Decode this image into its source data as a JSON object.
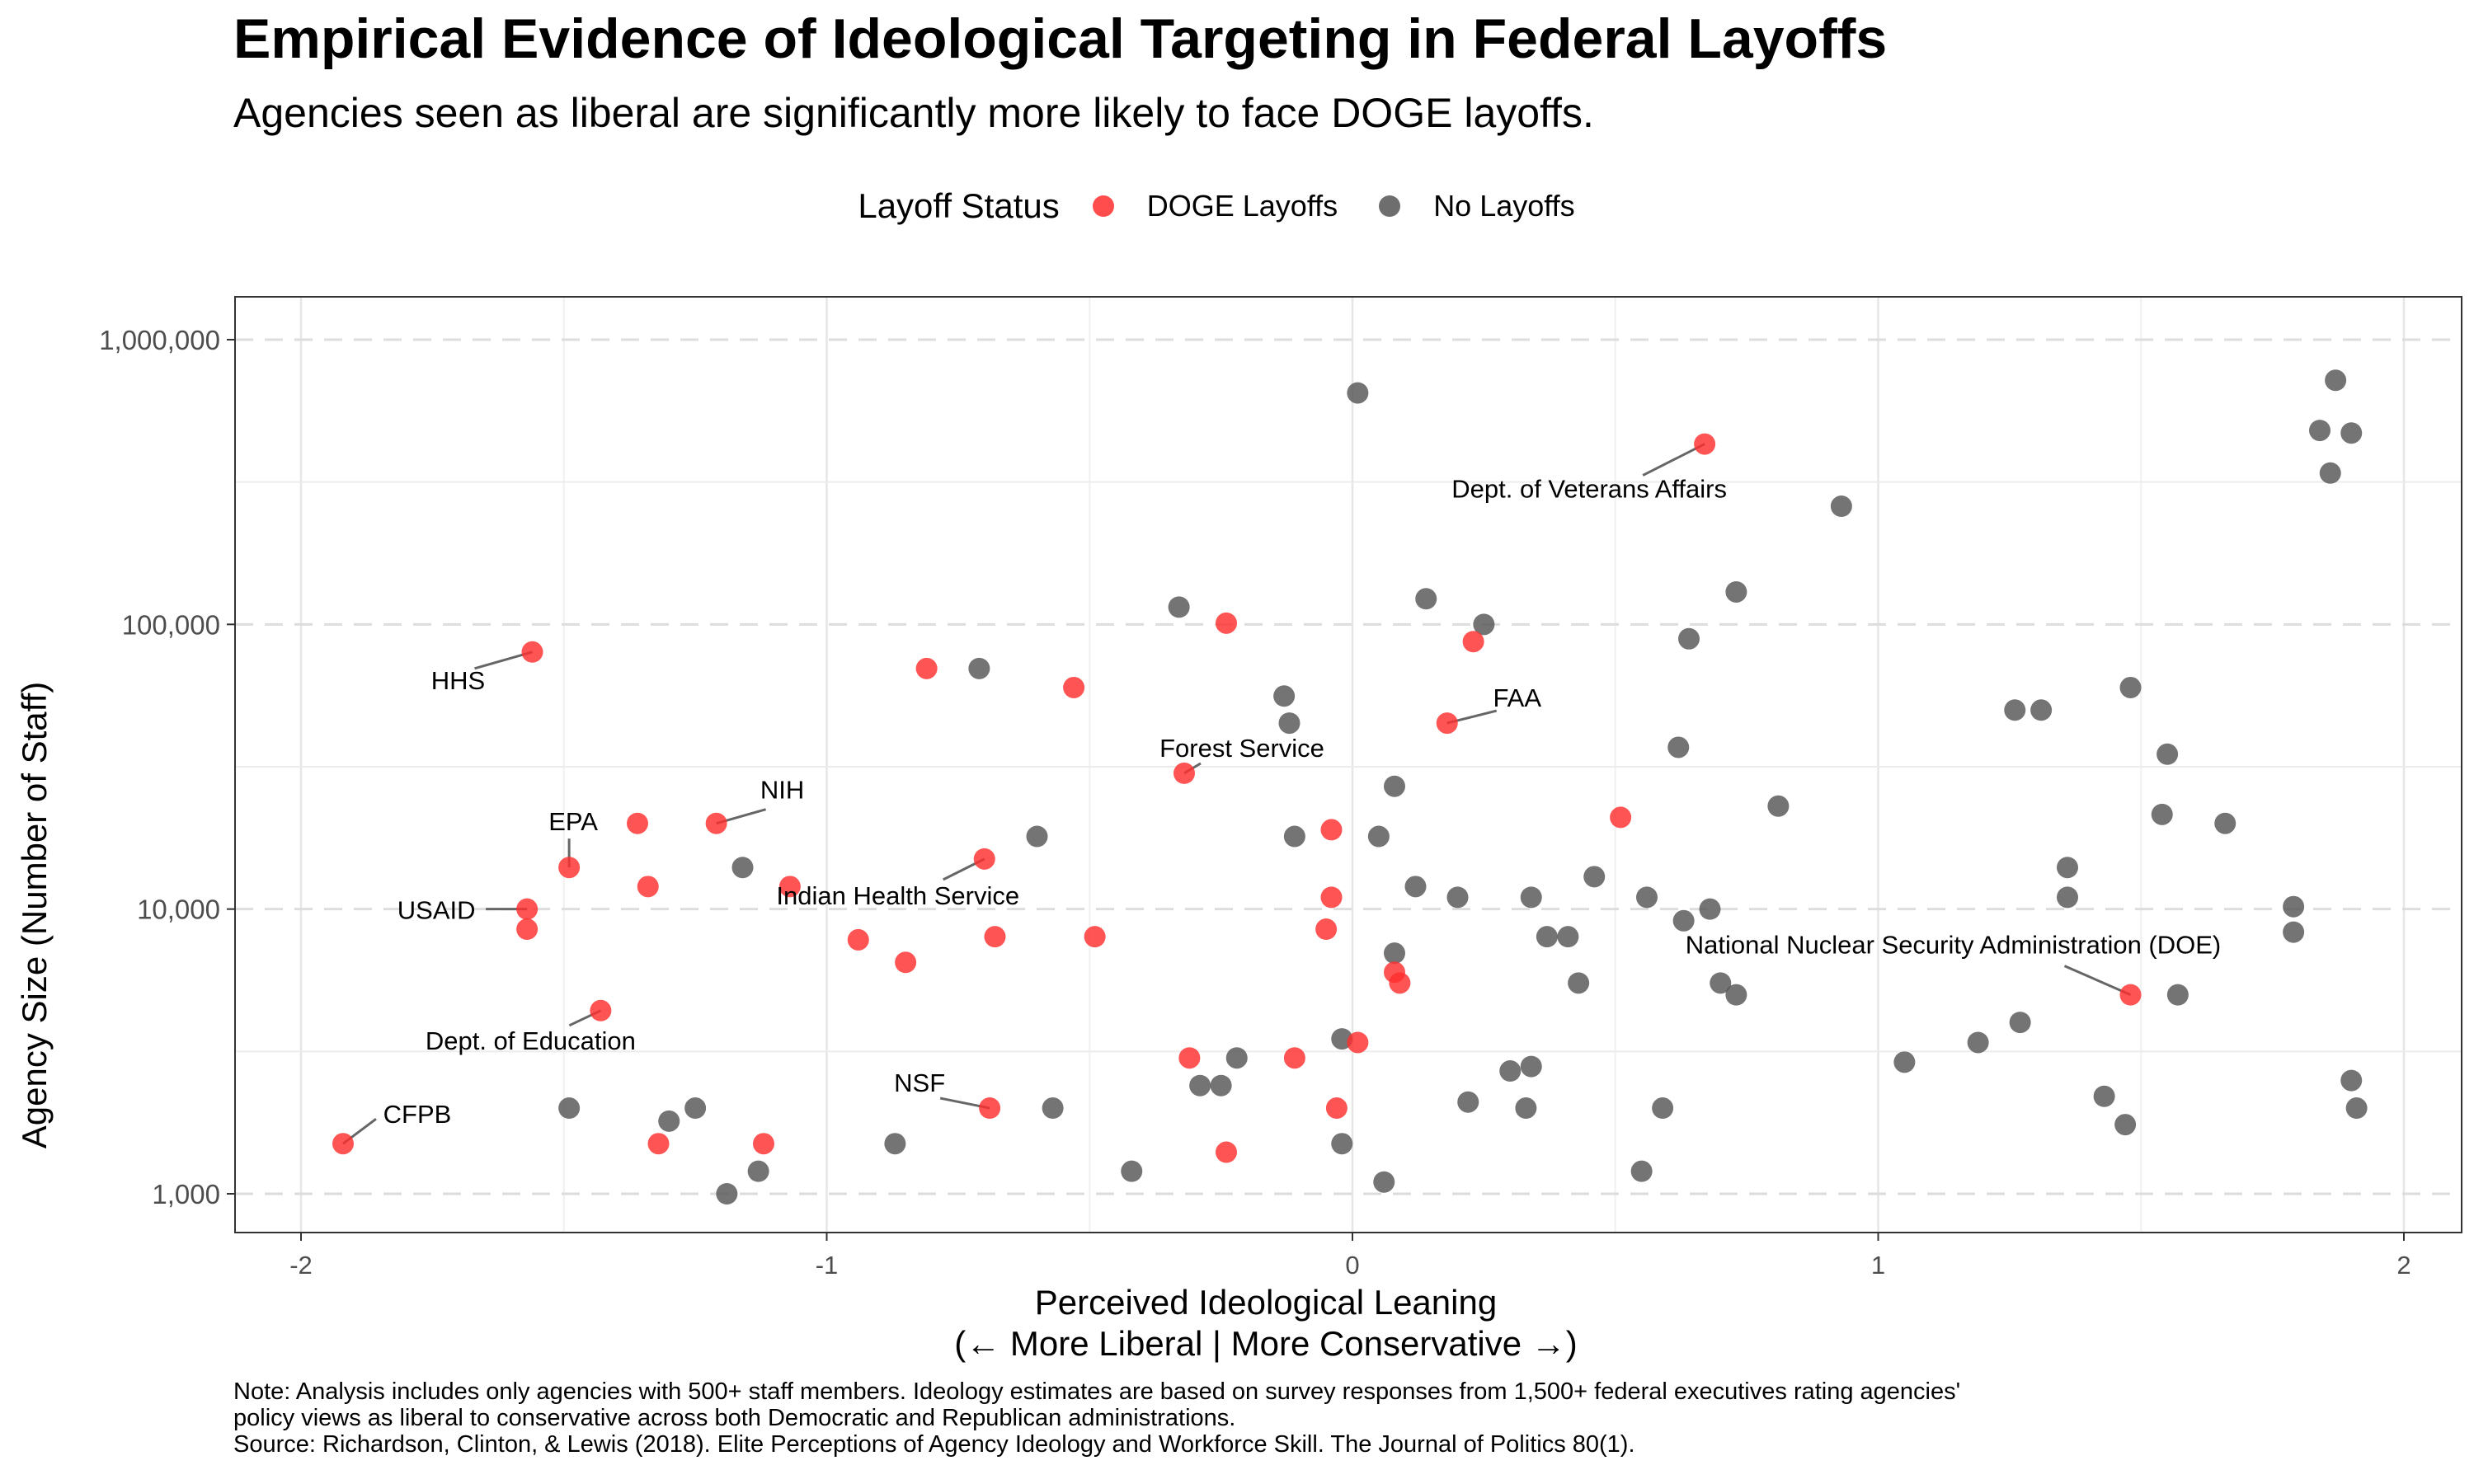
{
  "title": "Empirical Evidence of Ideological Targeting in Federal Layoffs",
  "subtitle": "Agencies seen as liberal are significantly more likely to face DOGE layoffs.",
  "legend": {
    "title": "Layoff Status",
    "items": [
      {
        "label": "DOGE Layoffs",
        "color": "#ff2e2e"
      },
      {
        "label": "No Layoffs",
        "color": "#555555"
      }
    ]
  },
  "x_axis_title_line1": "Perceived Ideological Leaning",
  "x_axis_title_line2": "(← More Liberal | More Conservative →)",
  "y_axis_title": "Agency Size (Number of Staff)",
  "notes": {
    "line1": "Note: Analysis includes only agencies with 500+ staff members. Ideology estimates are based on survey responses from 1,500+ federal executives rating agencies'",
    "line2": "policy views as liberal to conservative across both Democratic and Republican administrations.",
    "source": "Source: Richardson, Clinton, & Lewis (2018). Elite Perceptions of Agency Ideology and Workforce Skill. The Journal of Politics 80(1)."
  },
  "chart_data": {
    "type": "scatter",
    "x_scale": "linear",
    "y_scale": "log10",
    "xlim": [
      -2.1,
      2.1
    ],
    "ylim": [
      800,
      1400000
    ],
    "x_ticks": [
      -2,
      -1,
      0,
      1,
      2
    ],
    "x_tick_labels": [
      "-2",
      "-1",
      "0",
      "1",
      "2"
    ],
    "y_ticks": [
      1000,
      10000,
      100000,
      1000000
    ],
    "y_tick_labels": [
      "1,000",
      "10,000",
      "100,000",
      "1,000,000"
    ],
    "grid": true,
    "legend_position": "top",
    "colors": {
      "layoff": "#ff2e2e",
      "none": "#555555"
    },
    "series": [
      {
        "name": "DOGE Layoffs",
        "points": [
          {
            "x": 0.67,
            "y": 430000,
            "label": "Dept. of Veterans Affairs"
          },
          {
            "x": -0.24,
            "y": 101000
          },
          {
            "x": 0.23,
            "y": 87000
          },
          {
            "x": -1.56,
            "y": 80000,
            "label": "HHS"
          },
          {
            "x": -0.81,
            "y": 70000
          },
          {
            "x": -0.53,
            "y": 60000
          },
          {
            "x": 0.18,
            "y": 45000,
            "label": "FAA"
          },
          {
            "x": -0.32,
            "y": 30000,
            "label": "Forest Service"
          },
          {
            "x": 0.51,
            "y": 21000
          },
          {
            "x": -1.36,
            "y": 20000
          },
          {
            "x": -1.21,
            "y": 20000,
            "label": "NIH"
          },
          {
            "x": -0.04,
            "y": 19000
          },
          {
            "x": -0.7,
            "y": 15000,
            "label": "Indian Health Service"
          },
          {
            "x": -1.49,
            "y": 14000,
            "label": "EPA"
          },
          {
            "x": -1.34,
            "y": 12000
          },
          {
            "x": -1.07,
            "y": 12000
          },
          {
            "x": -0.04,
            "y": 11000
          },
          {
            "x": -1.57,
            "y": 10000,
            "label": "USAID"
          },
          {
            "x": -1.57,
            "y": 8500
          },
          {
            "x": -0.05,
            "y": 8500
          },
          {
            "x": -0.94,
            "y": 7800
          },
          {
            "x": -0.68,
            "y": 8000
          },
          {
            "x": -0.49,
            "y": 8000
          },
          {
            "x": -0.85,
            "y": 6500
          },
          {
            "x": 0.08,
            "y": 6000
          },
          {
            "x": 0.09,
            "y": 5500
          },
          {
            "x": 1.48,
            "y": 5000,
            "label": "National Nuclear Security Administration (DOE)"
          },
          {
            "x": -1.43,
            "y": 4400,
            "label": "Dept. of Education"
          },
          {
            "x": 0.01,
            "y": 3400
          },
          {
            "x": -0.31,
            "y": 3000
          },
          {
            "x": -0.11,
            "y": 3000
          },
          {
            "x": -0.69,
            "y": 2000,
            "label": "NSF"
          },
          {
            "x": -0.03,
            "y": 2000
          },
          {
            "x": -1.92,
            "y": 1500,
            "label": "CFPB"
          },
          {
            "x": -1.32,
            "y": 1500
          },
          {
            "x": -1.12,
            "y": 1500
          },
          {
            "x": -0.24,
            "y": 1400
          }
        ]
      },
      {
        "name": "No Layoffs",
        "points": [
          {
            "x": 0.01,
            "y": 650000
          },
          {
            "x": 1.87,
            "y": 720000
          },
          {
            "x": 1.84,
            "y": 480000
          },
          {
            "x": 1.9,
            "y": 470000
          },
          {
            "x": 1.86,
            "y": 340000
          },
          {
            "x": 0.93,
            "y": 260000
          },
          {
            "x": 0.73,
            "y": 130000
          },
          {
            "x": 0.14,
            "y": 123000
          },
          {
            "x": -0.33,
            "y": 115000
          },
          {
            "x": 0.25,
            "y": 100000
          },
          {
            "x": 0.64,
            "y": 89000
          },
          {
            "x": -0.71,
            "y": 70000
          },
          {
            "x": 1.48,
            "y": 60000
          },
          {
            "x": -0.13,
            "y": 56000
          },
          {
            "x": 1.26,
            "y": 50000
          },
          {
            "x": 1.31,
            "y": 50000
          },
          {
            "x": -0.12,
            "y": 45000
          },
          {
            "x": 0.62,
            "y": 37000
          },
          {
            "x": 1.55,
            "y": 35000
          },
          {
            "x": 0.08,
            "y": 27000
          },
          {
            "x": 0.81,
            "y": 23000
          },
          {
            "x": 1.54,
            "y": 21500
          },
          {
            "x": 1.66,
            "y": 20000
          },
          {
            "x": -0.6,
            "y": 18000
          },
          {
            "x": -0.11,
            "y": 18000
          },
          {
            "x": 0.05,
            "y": 18000
          },
          {
            "x": -1.16,
            "y": 14000
          },
          {
            "x": 1.36,
            "y": 14000
          },
          {
            "x": 0.46,
            "y": 13000
          },
          {
            "x": 0.12,
            "y": 12000
          },
          {
            "x": 0.2,
            "y": 11000
          },
          {
            "x": 0.34,
            "y": 11000
          },
          {
            "x": 0.56,
            "y": 11000
          },
          {
            "x": 1.36,
            "y": 11000
          },
          {
            "x": 0.68,
            "y": 10000
          },
          {
            "x": 1.79,
            "y": 10200
          },
          {
            "x": 0.63,
            "y": 9100
          },
          {
            "x": 1.79,
            "y": 8300
          },
          {
            "x": 0.37,
            "y": 8000
          },
          {
            "x": 0.41,
            "y": 8000
          },
          {
            "x": 0.08,
            "y": 7000
          },
          {
            "x": 0.43,
            "y": 5500
          },
          {
            "x": 0.7,
            "y": 5500
          },
          {
            "x": 0.73,
            "y": 5000
          },
          {
            "x": 1.57,
            "y": 5000
          },
          {
            "x": 1.27,
            "y": 4000
          },
          {
            "x": -0.02,
            "y": 3500
          },
          {
            "x": 1.19,
            "y": 3400
          },
          {
            "x": -0.22,
            "y": 3000
          },
          {
            "x": 1.05,
            "y": 2900
          },
          {
            "x": 0.34,
            "y": 2800
          },
          {
            "x": 0.3,
            "y": 2700
          },
          {
            "x": -0.29,
            "y": 2400
          },
          {
            "x": -0.25,
            "y": 2400
          },
          {
            "x": 1.9,
            "y": 2500
          },
          {
            "x": 1.43,
            "y": 2200
          },
          {
            "x": 0.22,
            "y": 2100
          },
          {
            "x": -1.49,
            "y": 2000
          },
          {
            "x": -1.25,
            "y": 2000
          },
          {
            "x": -0.57,
            "y": 2000
          },
          {
            "x": 0.33,
            "y": 2000
          },
          {
            "x": 0.59,
            "y": 2000
          },
          {
            "x": 1.91,
            "y": 2000
          },
          {
            "x": -1.3,
            "y": 1800
          },
          {
            "x": 1.47,
            "y": 1750
          },
          {
            "x": -0.87,
            "y": 1500
          },
          {
            "x": -0.02,
            "y": 1500
          },
          {
            "x": -1.13,
            "y": 1200
          },
          {
            "x": -0.42,
            "y": 1200
          },
          {
            "x": 0.55,
            "y": 1200
          },
          {
            "x": 0.06,
            "y": 1100
          },
          {
            "x": -1.19,
            "y": 1000
          }
        ]
      }
    ]
  }
}
